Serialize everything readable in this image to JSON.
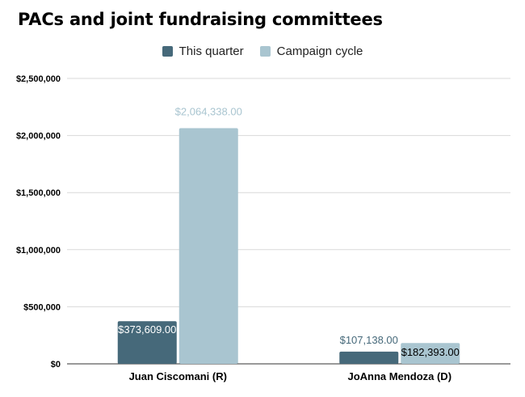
{
  "chart_data": {
    "type": "bar",
    "title": "PACs and joint fundraising committees",
    "categories": [
      "Juan Ciscomani (R)",
      "JoAnna Mendoza (D)"
    ],
    "series": [
      {
        "name": "This quarter",
        "color": "#46697a",
        "values": [
          373609.0,
          107138.0
        ],
        "labels": [
          "$373,609.00",
          "$107,138.00"
        ]
      },
      {
        "name": "Campaign cycle",
        "color": "#a9c5d0",
        "values": [
          2064338.0,
          182393.0
        ],
        "labels": [
          "$2,064,338.00",
          "$182,393.00"
        ]
      }
    ],
    "yticks": [
      "$0",
      "$500,000",
      "$1,000,000",
      "$1,500,000",
      "$2,000,000",
      "$2,500,000"
    ],
    "ylim": [
      0,
      2500000
    ],
    "grid": true,
    "legend": "top-center"
  }
}
